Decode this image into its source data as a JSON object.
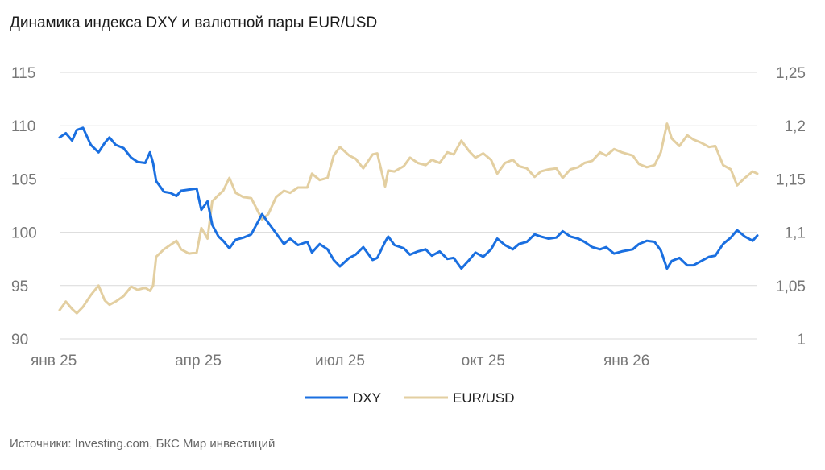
{
  "title": "Динамика индекса DXY и валютной пары EUR/USD",
  "source": "Источники: Investing.com, БКС Мир инвестиций",
  "chart_data": {
    "type": "line",
    "title": "Динамика индекса DXY и валютной пары EUR/USD",
    "x_tick_labels": [
      "янв 25",
      "апр 25",
      "июл 25",
      "окт 25",
      "янв 26"
    ],
    "x_tick_dates": [
      "2025-01-02",
      "2025-04-01",
      "2025-07-01",
      "2025-10-01",
      "2026-01-01"
    ],
    "y_left": {
      "ticks": [
        90,
        95,
        100,
        105,
        110,
        115
      ],
      "tick_labels": [
        "90",
        "95",
        "100",
        "105",
        "110",
        "115"
      ],
      "range": [
        90,
        115
      ]
    },
    "y_right": {
      "ticks": [
        1,
        1.05,
        1.1,
        1.15,
        1.2,
        1.25
      ],
      "tick_labels": [
        "1",
        "1,05",
        "1,1",
        "1,15",
        "1,2",
        "1,25"
      ],
      "range": [
        1,
        1.25
      ]
    },
    "grid": true,
    "legend_position": "bottom",
    "series": [
      {
        "name": "DXY",
        "axis": "left",
        "color": "#1a6fe0",
        "points": [
          [
            "2025-01-02",
            108.9
          ],
          [
            "2025-01-06",
            109.3
          ],
          [
            "2025-01-10",
            108.6
          ],
          [
            "2025-01-13",
            109.6
          ],
          [
            "2025-01-17",
            109.8
          ],
          [
            "2025-01-22",
            108.2
          ],
          [
            "2025-01-27",
            107.5
          ],
          [
            "2025-01-31",
            108.4
          ],
          [
            "2025-02-03",
            108.9
          ],
          [
            "2025-02-07",
            108.2
          ],
          [
            "2025-02-12",
            107.9
          ],
          [
            "2025-02-17",
            107.0
          ],
          [
            "2025-02-21",
            106.6
          ],
          [
            "2025-02-26",
            106.5
          ],
          [
            "2025-03-01",
            107.5
          ],
          [
            "2025-03-03",
            106.5
          ],
          [
            "2025-03-05",
            104.8
          ],
          [
            "2025-03-10",
            103.8
          ],
          [
            "2025-03-14",
            103.7
          ],
          [
            "2025-03-18",
            103.4
          ],
          [
            "2025-03-21",
            103.9
          ],
          [
            "2025-03-26",
            104.0
          ],
          [
            "2025-03-31",
            104.1
          ],
          [
            "2025-04-03",
            102.1
          ],
          [
            "2025-04-07",
            102.9
          ],
          [
            "2025-04-10",
            100.7
          ],
          [
            "2025-04-14",
            99.6
          ],
          [
            "2025-04-17",
            99.2
          ],
          [
            "2025-04-21",
            98.5
          ],
          [
            "2025-04-25",
            99.3
          ],
          [
            "2025-04-30",
            99.5
          ],
          [
            "2025-05-05",
            99.8
          ],
          [
            "2025-05-12",
            101.7
          ],
          [
            "2025-05-16",
            100.9
          ],
          [
            "2025-05-21",
            99.9
          ],
          [
            "2025-05-26",
            98.9
          ],
          [
            "2025-05-30",
            99.4
          ],
          [
            "2025-06-04",
            98.8
          ],
          [
            "2025-06-10",
            99.1
          ],
          [
            "2025-06-13",
            98.1
          ],
          [
            "2025-06-18",
            98.9
          ],
          [
            "2025-06-23",
            98.4
          ],
          [
            "2025-06-27",
            97.4
          ],
          [
            "2025-07-01",
            96.8
          ],
          [
            "2025-07-07",
            97.6
          ],
          [
            "2025-07-11",
            97.9
          ],
          [
            "2025-07-16",
            98.6
          ],
          [
            "2025-07-22",
            97.4
          ],
          [
            "2025-07-25",
            97.6
          ],
          [
            "2025-07-30",
            99.1
          ],
          [
            "2025-08-01",
            99.6
          ],
          [
            "2025-08-05",
            98.8
          ],
          [
            "2025-08-11",
            98.5
          ],
          [
            "2025-08-15",
            97.9
          ],
          [
            "2025-08-20",
            98.2
          ],
          [
            "2025-08-25",
            98.4
          ],
          [
            "2025-08-29",
            97.8
          ],
          [
            "2025-09-03",
            98.2
          ],
          [
            "2025-09-08",
            97.5
          ],
          [
            "2025-09-12",
            97.6
          ],
          [
            "2025-09-17",
            96.6
          ],
          [
            "2025-09-22",
            97.4
          ],
          [
            "2025-09-26",
            98.1
          ],
          [
            "2025-10-01",
            97.7
          ],
          [
            "2025-10-06",
            98.4
          ],
          [
            "2025-10-10",
            99.4
          ],
          [
            "2025-10-15",
            98.8
          ],
          [
            "2025-10-20",
            98.4
          ],
          [
            "2025-10-24",
            98.9
          ],
          [
            "2025-10-29",
            99.1
          ],
          [
            "2025-11-03",
            99.8
          ],
          [
            "2025-11-07",
            99.6
          ],
          [
            "2025-11-12",
            99.4
          ],
          [
            "2025-11-17",
            99.5
          ],
          [
            "2025-11-21",
            100.1
          ],
          [
            "2025-11-26",
            99.6
          ],
          [
            "2025-12-01",
            99.4
          ],
          [
            "2025-12-05",
            99.1
          ],
          [
            "2025-12-10",
            98.6
          ],
          [
            "2025-12-15",
            98.4
          ],
          [
            "2025-12-19",
            98.6
          ],
          [
            "2025-12-24",
            98.0
          ],
          [
            "2025-12-29",
            98.2
          ],
          [
            "2026-01-05",
            98.4
          ],
          [
            "2026-01-09",
            98.9
          ],
          [
            "2026-01-14",
            99.2
          ],
          [
            "2026-01-19",
            99.1
          ],
          [
            "2026-01-23",
            98.3
          ],
          [
            "2026-01-27",
            96.6
          ],
          [
            "2026-01-30",
            97.3
          ],
          [
            "2026-02-04",
            97.6
          ],
          [
            "2026-02-09",
            96.9
          ],
          [
            "2026-02-13",
            96.9
          ],
          [
            "2026-02-18",
            97.3
          ],
          [
            "2026-02-23",
            97.7
          ],
          [
            "2026-02-27",
            97.8
          ],
          [
            "2026-03-04",
            98.9
          ],
          [
            "2026-03-09",
            99.5
          ],
          [
            "2026-03-13",
            100.2
          ],
          [
            "2026-03-18",
            99.6
          ],
          [
            "2026-03-23",
            99.2
          ],
          [
            "2026-03-26",
            99.7
          ]
        ]
      },
      {
        "name": "EUR/USD",
        "axis": "right",
        "color": "#e3cfa1",
        "points": [
          [
            "2025-01-02",
            1.027
          ],
          [
            "2025-01-06",
            1.035
          ],
          [
            "2025-01-10",
            1.028
          ],
          [
            "2025-01-13",
            1.024
          ],
          [
            "2025-01-17",
            1.03
          ],
          [
            "2025-01-22",
            1.041
          ],
          [
            "2025-01-27",
            1.05
          ],
          [
            "2025-01-31",
            1.036
          ],
          [
            "2025-02-03",
            1.032
          ],
          [
            "2025-02-07",
            1.035
          ],
          [
            "2025-02-12",
            1.04
          ],
          [
            "2025-02-17",
            1.049
          ],
          [
            "2025-02-21",
            1.046
          ],
          [
            "2025-02-26",
            1.048
          ],
          [
            "2025-03-01",
            1.045
          ],
          [
            "2025-03-03",
            1.05
          ],
          [
            "2025-03-05",
            1.077
          ],
          [
            "2025-03-10",
            1.084
          ],
          [
            "2025-03-14",
            1.088
          ],
          [
            "2025-03-18",
            1.092
          ],
          [
            "2025-03-21",
            1.084
          ],
          [
            "2025-03-26",
            1.08
          ],
          [
            "2025-03-31",
            1.081
          ],
          [
            "2025-04-03",
            1.104
          ],
          [
            "2025-04-07",
            1.094
          ],
          [
            "2025-04-10",
            1.129
          ],
          [
            "2025-04-14",
            1.135
          ],
          [
            "2025-04-17",
            1.139
          ],
          [
            "2025-04-21",
            1.151
          ],
          [
            "2025-04-25",
            1.137
          ],
          [
            "2025-04-30",
            1.133
          ],
          [
            "2025-05-05",
            1.132
          ],
          [
            "2025-05-12",
            1.112
          ],
          [
            "2025-05-16",
            1.117
          ],
          [
            "2025-05-21",
            1.133
          ],
          [
            "2025-05-26",
            1.139
          ],
          [
            "2025-05-30",
            1.137
          ],
          [
            "2025-06-04",
            1.142
          ],
          [
            "2025-06-10",
            1.142
          ],
          [
            "2025-06-13",
            1.155
          ],
          [
            "2025-06-18",
            1.149
          ],
          [
            "2025-06-23",
            1.151
          ],
          [
            "2025-06-27",
            1.172
          ],
          [
            "2025-07-01",
            1.18
          ],
          [
            "2025-07-07",
            1.172
          ],
          [
            "2025-07-11",
            1.169
          ],
          [
            "2025-07-16",
            1.16
          ],
          [
            "2025-07-22",
            1.173
          ],
          [
            "2025-07-25",
            1.174
          ],
          [
            "2025-07-30",
            1.143
          ],
          [
            "2025-08-01",
            1.158
          ],
          [
            "2025-08-05",
            1.157
          ],
          [
            "2025-08-11",
            1.162
          ],
          [
            "2025-08-15",
            1.17
          ],
          [
            "2025-08-20",
            1.165
          ],
          [
            "2025-08-25",
            1.163
          ],
          [
            "2025-08-29",
            1.168
          ],
          [
            "2025-09-03",
            1.165
          ],
          [
            "2025-09-08",
            1.175
          ],
          [
            "2025-09-12",
            1.173
          ],
          [
            "2025-09-17",
            1.186
          ],
          [
            "2025-09-22",
            1.176
          ],
          [
            "2025-09-26",
            1.17
          ],
          [
            "2025-10-01",
            1.174
          ],
          [
            "2025-10-06",
            1.168
          ],
          [
            "2025-10-10",
            1.155
          ],
          [
            "2025-10-15",
            1.165
          ],
          [
            "2025-10-20",
            1.168
          ],
          [
            "2025-10-24",
            1.162
          ],
          [
            "2025-10-29",
            1.16
          ],
          [
            "2025-11-03",
            1.152
          ],
          [
            "2025-11-07",
            1.157
          ],
          [
            "2025-11-12",
            1.159
          ],
          [
            "2025-11-17",
            1.16
          ],
          [
            "2025-11-21",
            1.151
          ],
          [
            "2025-11-26",
            1.159
          ],
          [
            "2025-12-01",
            1.161
          ],
          [
            "2025-12-05",
            1.165
          ],
          [
            "2025-12-10",
            1.167
          ],
          [
            "2025-12-15",
            1.175
          ],
          [
            "2025-12-19",
            1.172
          ],
          [
            "2025-12-24",
            1.178
          ],
          [
            "2025-12-29",
            1.175
          ],
          [
            "2026-01-05",
            1.172
          ],
          [
            "2026-01-09",
            1.164
          ],
          [
            "2026-01-14",
            1.161
          ],
          [
            "2026-01-19",
            1.163
          ],
          [
            "2026-01-23",
            1.175
          ],
          [
            "2026-01-27",
            1.202
          ],
          [
            "2026-01-30",
            1.188
          ],
          [
            "2026-02-04",
            1.181
          ],
          [
            "2026-02-09",
            1.191
          ],
          [
            "2026-02-13",
            1.187
          ],
          [
            "2026-02-18",
            1.184
          ],
          [
            "2026-02-23",
            1.18
          ],
          [
            "2026-02-27",
            1.181
          ],
          [
            "2026-03-04",
            1.163
          ],
          [
            "2026-03-09",
            1.159
          ],
          [
            "2026-03-13",
            1.144
          ],
          [
            "2026-03-18",
            1.151
          ],
          [
            "2026-03-23",
            1.157
          ],
          [
            "2026-03-26",
            1.155
          ]
        ]
      }
    ]
  }
}
